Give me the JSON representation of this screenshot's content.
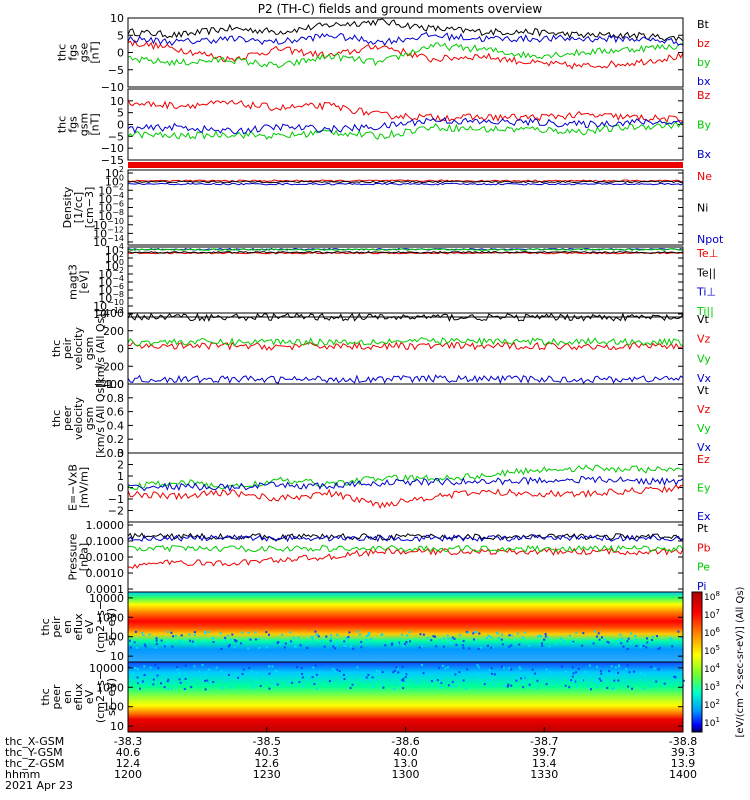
{
  "title": "P2 (TH-C) fields and ground moments overview",
  "date_label": "2021 Apr 23",
  "colors": {
    "black": "#000000",
    "red": "#ee0000",
    "green": "#00cc00",
    "blue": "#0000cc"
  },
  "x_axis": {
    "rows": [
      {
        "label": "thc_X-GSM",
        "values": [
          "-38.3",
          "-38.5",
          "-38.6",
          "-38.7",
          "-38.8"
        ]
      },
      {
        "label": "thc_Y-GSM",
        "values": [
          "40.6",
          "40.3",
          "40.0",
          "39.7",
          "39.3"
        ]
      },
      {
        "label": "thc_Z-GSM",
        "values": [
          "12.4",
          "12.6",
          "13.0",
          "13.4",
          "13.9"
        ]
      },
      {
        "label": "hhmm",
        "values": [
          "1200",
          "1230",
          "1300",
          "1330",
          "1400"
        ]
      }
    ]
  },
  "colorbar": {
    "label": "[eV/(cm^2-sec-sr-eV)] (All Qs)",
    "ticks": [
      "10^8",
      "10^7",
      "10^6",
      "10^5",
      "10^4",
      "10^3",
      "10^2",
      "10^1"
    ]
  },
  "chart_data": [
    {
      "type": "line",
      "ylabel": [
        "thc",
        "fgs",
        "gse",
        "[nT]"
      ],
      "ylim": [
        -10,
        10
      ],
      "ticks": [
        "10",
        "5",
        "0",
        "−5",
        "−10"
      ],
      "series": [
        {
          "name": "Bt",
          "color": "black",
          "values": [
            6,
            5,
            7,
            6,
            8,
            9,
            7,
            6,
            6,
            5,
            5,
            4
          ]
        },
        {
          "name": "bz",
          "color": "red",
          "values": [
            3,
            1,
            -2,
            1,
            -1,
            2,
            -2,
            -1,
            -3,
            -4,
            -3,
            -1
          ]
        },
        {
          "name": "by",
          "color": "green",
          "values": [
            -2,
            -3,
            -2,
            -4,
            -1,
            -3,
            2,
            1,
            -1,
            0,
            1,
            2
          ]
        },
        {
          "name": "bx",
          "color": "blue",
          "values": [
            4,
            3,
            4,
            3,
            5,
            3,
            5,
            4,
            4,
            4,
            4,
            3
          ]
        }
      ]
    },
    {
      "type": "line",
      "ylabel": [
        "thc",
        "fgs",
        "gsm",
        "[nT]"
      ],
      "ylim": [
        -15,
        15
      ],
      "ticks": [
        "10",
        "5",
        "0",
        "−5",
        "−10",
        "−15"
      ],
      "series": [
        {
          "name": "Bz",
          "color": "red",
          "values": [
            9,
            8,
            9,
            7,
            8,
            4,
            3,
            3,
            3,
            4,
            3,
            2
          ]
        },
        {
          "name": "By",
          "color": "green",
          "values": [
            -4,
            -5,
            -4,
            -5,
            -3,
            -5,
            -1,
            -2,
            -2,
            -3,
            -1,
            0
          ]
        },
        {
          "name": "Bx",
          "color": "blue",
          "values": [
            -2,
            -1,
            -3,
            -1,
            -2,
            -1,
            2,
            1,
            1,
            0,
            1,
            1
          ]
        }
      ]
    },
    {
      "type": "line",
      "scale": "log",
      "ylabel": [
        "Density",
        "[1/cc]",
        "[cm−3]"
      ],
      "ylim": [
        1e-14,
        100
      ],
      "ticks": [
        "10^2",
        "10^0",
        "10^−2",
        "10^−4",
        "10^−6",
        "10^−8",
        "10^−10",
        "10^−12",
        "10^−14"
      ],
      "series": [
        {
          "name": "Ne",
          "color": "red",
          "values": [
            0.5,
            0.5,
            0.5,
            0.5,
            0.5,
            0.5,
            0.5,
            0.5,
            0.5,
            0.5,
            0.5,
            0.5
          ]
        },
        {
          "name": "Ni",
          "color": "black",
          "values": [
            0.3,
            0.3,
            0.3,
            0.3,
            0.3,
            0.3,
            0.3,
            0.3,
            0.3,
            0.3,
            0.3,
            0.3
          ]
        },
        {
          "name": "Npot",
          "color": "blue",
          "values": [
            0.1,
            0.1,
            0.1,
            0.1,
            0.1,
            0.1,
            0.1,
            0.1,
            0.1,
            0.1,
            0.1,
            0.1
          ]
        }
      ]
    },
    {
      "type": "line",
      "scale": "log",
      "ylabel": [
        "magt3",
        "[eV]"
      ],
      "ylim": [
        1e-12,
        10000
      ],
      "ticks": [
        "10^4",
        "10^2",
        "10^0",
        "10^−2",
        "10^−4",
        "10^−6",
        "10^−8",
        "10^−10",
        "10^−12"
      ],
      "series": [
        {
          "name": "Te⊥",
          "color": "red",
          "values": [
            400,
            400,
            400,
            400,
            400,
            400,
            400,
            400,
            400,
            400,
            400,
            400
          ]
        },
        {
          "name": "Te||",
          "color": "black",
          "values": [
            600,
            600,
            600,
            600,
            600,
            600,
            600,
            600,
            600,
            600,
            600,
            600
          ]
        },
        {
          "name": "Ti⊥",
          "color": "blue",
          "values": [
            3000,
            3000,
            3000,
            3000,
            3000,
            3000,
            3000,
            3000,
            3000,
            3000,
            3000,
            3000
          ]
        },
        {
          "name": "Ti||",
          "color": "green",
          "values": [
            2500,
            2500,
            2500,
            2500,
            2500,
            2500,
            2500,
            2500,
            2500,
            2500,
            2500,
            2500
          ]
        }
      ]
    },
    {
      "type": "line",
      "ylabel": [
        "thc",
        "peir",
        "velocity",
        "gsm",
        "[km/s (All Qs)]"
      ],
      "ylim": [
        -400,
        400
      ],
      "ticks": [
        "400",
        "200",
        "0",
        "−200",
        "−400"
      ],
      "series": [
        {
          "name": "Vt",
          "color": "black",
          "values": [
            360,
            355,
            350,
            360,
            355,
            350,
            355,
            350,
            350,
            355,
            350,
            345
          ]
        },
        {
          "name": "Vz",
          "color": "red",
          "values": [
            30,
            25,
            30,
            20,
            30,
            25,
            30,
            25,
            30,
            25,
            30,
            30
          ]
        },
        {
          "name": "Vy",
          "color": "green",
          "values": [
            70,
            75,
            70,
            80,
            75,
            80,
            85,
            80,
            75,
            80,
            75,
            70
          ]
        },
        {
          "name": "Vx",
          "color": "blue",
          "values": [
            -345,
            -350,
            -345,
            -350,
            -345,
            -345,
            -340,
            -345,
            -345,
            -350,
            -345,
            -340
          ]
        }
      ]
    },
    {
      "type": "line",
      "ylabel": [
        "thc",
        "peer",
        "velocity",
        "gsm",
        "[km/s (All Qs)]"
      ],
      "ylim": [
        0,
        1
      ],
      "ticks": [
        "1.0",
        "0.8",
        "0.6",
        "0.4",
        "0.2",
        "0.0"
      ],
      "legend": [
        "Vt",
        "Vz",
        "Vy",
        "Vx"
      ],
      "legend_colors": [
        "black",
        "red",
        "green",
        "blue"
      ],
      "series": []
    },
    {
      "type": "line",
      "ylabel": [
        "E=−VxB",
        "[mV/m]"
      ],
      "ylim": [
        -3,
        3
      ],
      "ticks": [
        "3",
        "2",
        "1",
        "0",
        "−1",
        "−2"
      ],
      "series": [
        {
          "name": "Ez",
          "color": "red",
          "values": [
            -0.5,
            -0.8,
            -0.4,
            -1.0,
            -0.5,
            -1.5,
            -0.8,
            -0.4,
            -0.5,
            -0.6,
            -0.3,
            0.0
          ]
        },
        {
          "name": "Ey",
          "color": "green",
          "values": [
            0.0,
            0.5,
            0.0,
            0.6,
            0.3,
            0.8,
            0.8,
            1.0,
            1.5,
            1.7,
            1.6,
            1.5
          ]
        },
        {
          "name": "Ex",
          "color": "blue",
          "values": [
            0.0,
            0.1,
            0.0,
            0.2,
            0.1,
            0.4,
            0.5,
            0.5,
            0.6,
            0.7,
            0.6,
            0.5
          ]
        }
      ]
    },
    {
      "type": "line",
      "scale": "log",
      "ylabel": [
        "Pressure",
        "[nPa]"
      ],
      "ylim": [
        0.0001,
        1
      ],
      "ticks": [
        "1.0000",
        "0.1000",
        "0.0100",
        "0.0010",
        "0.0001"
      ],
      "series": [
        {
          "name": "Pt",
          "color": "black",
          "values": [
            0.16,
            0.15,
            0.15,
            0.14,
            0.15,
            0.14,
            0.15,
            0.14,
            0.14,
            0.15,
            0.14,
            0.14
          ]
        },
        {
          "name": "Pb",
          "color": "red",
          "values": [
            0.003,
            0.005,
            0.004,
            0.007,
            0.01,
            0.02,
            0.02,
            0.02,
            0.02,
            0.02,
            0.02,
            0.02
          ]
        },
        {
          "name": "Pe",
          "color": "green",
          "values": [
            0.03,
            0.03,
            0.03,
            0.03,
            0.03,
            0.03,
            0.03,
            0.03,
            0.03,
            0.03,
            0.03,
            0.03
          ]
        },
        {
          "name": "Pi",
          "color": "blue",
          "values": [
            0.12,
            0.12,
            0.12,
            0.12,
            0.12,
            0.12,
            0.12,
            0.12,
            0.12,
            0.12,
            0.12,
            0.12
          ]
        }
      ]
    },
    {
      "type": "heatmap",
      "ylabel": [
        "thc",
        "peir",
        "en",
        "eflux",
        "eV",
        "(cm2−s−",
        "sr−eV)"
      ],
      "ylim": [
        5,
        20000
      ],
      "ticks": [
        "10000",
        "1000",
        "100",
        "10"
      ]
    },
    {
      "type": "heatmap",
      "ylabel": [
        "thc",
        "peer",
        "en",
        "eflux",
        "eV",
        "(cm2−s−",
        "sr−eV)"
      ],
      "ylim": [
        5,
        20000
      ],
      "ticks": [
        "10000",
        "1000",
        "100",
        "10"
      ]
    }
  ]
}
